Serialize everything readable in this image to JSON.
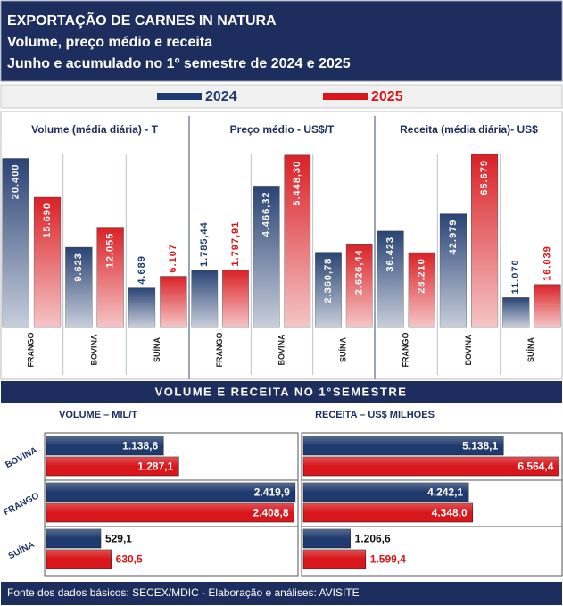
{
  "header": {
    "lines": [
      "EXPORTAÇÃO DE CARNES IN NATURA",
      "Volume, preço médio e receita",
      "Junho e acumulado no 1º semestre de 2024 e 2025"
    ]
  },
  "section_title": "VOLUME E RECEITA NO 1°SEMESTRE",
  "footer": "Fonte dos dados básicos: SECEX/MDIC - Elaboração e análises: AVISITE",
  "chart_data": [
    {
      "type": "bar",
      "title": "Volume (média diária) - T",
      "categories": [
        "FRANGO",
        "BOVINA",
        "SUÍNA"
      ],
      "ylim": [
        0,
        21000
      ],
      "series": [
        {
          "name": "2024",
          "color": "#1f3a6e",
          "values": [
            20400,
            9623,
            4689
          ],
          "value_labels": [
            "20.400",
            "9.623",
            "4.689"
          ]
        },
        {
          "name": "2025",
          "color": "#d8161b",
          "values": [
            15690,
            12055,
            6107
          ],
          "value_labels": [
            "15.690",
            "12.055",
            "6.107"
          ]
        }
      ]
    },
    {
      "type": "bar",
      "title": "Preço médio - US$/T",
      "categories": [
        "FRANGO",
        "BOVINA",
        "SUÍNA"
      ],
      "ylim": [
        0,
        5500
      ],
      "series": [
        {
          "name": "2024",
          "color": "#1f3a6e",
          "values": [
            1785.44,
            4466.32,
            2360.78
          ],
          "value_labels": [
            "1.785,44",
            "4.466,32",
            "2.360,78"
          ]
        },
        {
          "name": "2025",
          "color": "#d8161b",
          "values": [
            1797.91,
            5448.3,
            2626.44
          ],
          "value_labels": [
            "1.797,91",
            "5.448,30",
            "2.626,44"
          ]
        }
      ]
    },
    {
      "type": "bar",
      "title": "Receita (média diária)- US$",
      "categories": [
        "FRANGO",
        "BOVINA",
        "SUÍNA"
      ],
      "ylim": [
        0,
        66000
      ],
      "series": [
        {
          "name": "2024",
          "color": "#1f3a6e",
          "values": [
            36423,
            42979,
            11070
          ],
          "value_labels": [
            "36.423",
            "42.979",
            "11.070"
          ]
        },
        {
          "name": "2025",
          "color": "#d8161b",
          "values": [
            28210,
            65679,
            16039
          ],
          "value_labels": [
            "28.210",
            "65.679",
            "16.039"
          ]
        }
      ]
    },
    {
      "type": "hbar",
      "title": "VOLUME – MIL/T",
      "categories": [
        "BOVINA",
        "FRANGO",
        "SUÍNA"
      ],
      "xlim": [
        0,
        2430
      ],
      "series": [
        {
          "name": "2024",
          "color": "#1f3a6e",
          "values": [
            1138.6,
            2419.9,
            529.1
          ],
          "value_labels": [
            "1.138,6",
            "2.419,9",
            "529,1"
          ]
        },
        {
          "name": "2025",
          "color": "#d8161b",
          "values": [
            1287.1,
            2408.8,
            630.5
          ],
          "value_labels": [
            "1.287,1",
            "2.408,8",
            "630,5"
          ]
        }
      ]
    },
    {
      "type": "hbar",
      "title": "RECEITA – US$ MILHOES",
      "xlim": [
        0,
        6600
      ],
      "series": [
        {
          "name": "2024",
          "color": "#1f3a6e",
          "values": [
            5138.1,
            4242.1,
            1206.6
          ],
          "value_labels": [
            "5.138,1",
            "4.242,1",
            "1.206,6"
          ]
        },
        {
          "name": "2025",
          "color": "#d8161b",
          "values": [
            6564.4,
            4348.0,
            1599.4
          ],
          "value_labels": [
            "6.564,4",
            "4.348,0",
            "1.599,4"
          ]
        }
      ]
    }
  ]
}
